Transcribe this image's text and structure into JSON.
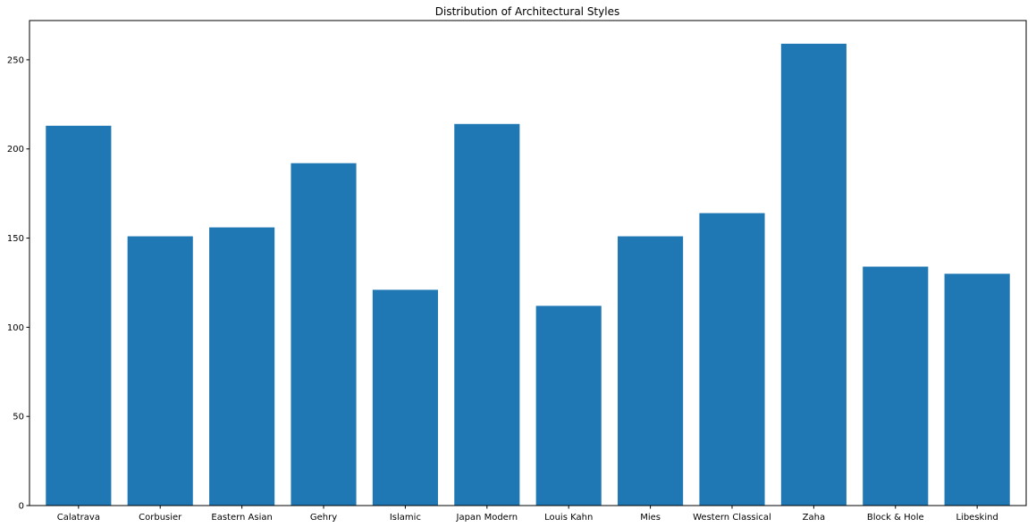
{
  "chart_data": {
    "type": "bar",
    "title": "Distribution of Architectural Styles",
    "xlabel": "",
    "ylabel": "",
    "categories": [
      "Calatrava",
      "Corbusier",
      "Eastern Asian",
      "Gehry",
      "Islamic",
      "Japan Modern",
      "Louis Kahn",
      "Mies",
      "Western Classical",
      "Zaha",
      "Block & Hole",
      "Libeskind"
    ],
    "values": [
      213,
      151,
      156,
      192,
      121,
      214,
      112,
      151,
      164,
      259,
      134,
      130
    ],
    "ylim": [
      0,
      272
    ],
    "yticks": [
      0,
      50,
      100,
      150,
      200,
      250
    ],
    "grid": false,
    "legend": "none",
    "bar_color": "#1f77b4"
  }
}
